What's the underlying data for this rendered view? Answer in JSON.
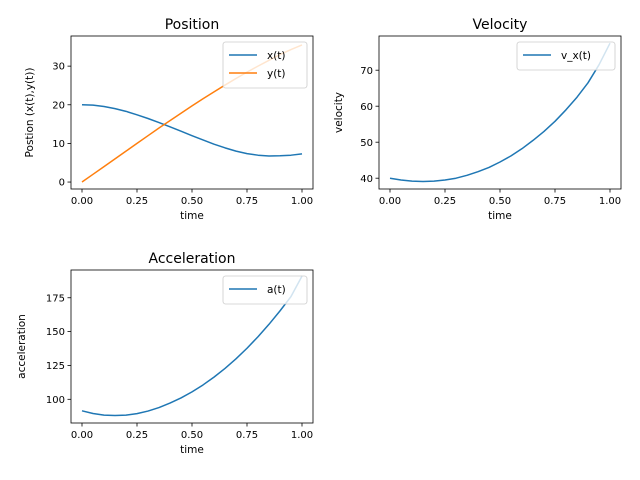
{
  "chart_data": [
    {
      "type": "line",
      "title": "Position",
      "xlabel": "time",
      "ylabel": "Postion (x(t),y(t))",
      "xlim": [
        -0.05,
        1.05
      ],
      "ylim": [
        -1.8,
        37.8
      ],
      "xticks": [
        0.0,
        0.25,
        0.5,
        0.75,
        1.0
      ],
      "xtick_labels": [
        "0.00",
        "0.25",
        "0.50",
        "0.75",
        "1.00"
      ],
      "yticks": [
        0,
        10,
        20,
        30
      ],
      "ytick_labels": [
        "0",
        "10",
        "20",
        "30"
      ],
      "legend_placement": "top-right",
      "grid": false,
      "series": [
        {
          "name": "x(t)",
          "color": "#1f77b4",
          "x": [
            0,
            0.05,
            0.1,
            0.15,
            0.2,
            0.25,
            0.3,
            0.35,
            0.4,
            0.45,
            0.5,
            0.55,
            0.6,
            0.65,
            0.7,
            0.75,
            0.8,
            0.85,
            0.9,
            0.95,
            1.0
          ],
          "y": [
            20.0,
            19.9,
            19.55,
            19.0,
            18.3,
            17.4,
            16.45,
            15.4,
            14.3,
            13.15,
            12.0,
            10.9,
            9.8,
            8.85,
            8.0,
            7.35,
            6.95,
            6.75,
            6.8,
            6.95,
            7.3
          ]
        },
        {
          "name": "y(t)",
          "color": "#ff7f0e",
          "x": [
            0,
            0.05,
            0.1,
            0.15,
            0.2,
            0.25,
            0.3,
            0.35,
            0.4,
            0.45,
            0.5,
            0.55,
            0.6,
            0.65,
            0.7,
            0.75,
            0.8,
            0.85,
            0.9,
            0.95,
            1.0
          ],
          "y": [
            0,
            2.0,
            4.0,
            6.0,
            8.0,
            10.0,
            12.0,
            14.0,
            15.9,
            17.8,
            19.7,
            21.55,
            23.35,
            25.1,
            26.8,
            28.45,
            30.0,
            31.5,
            33.0,
            34.3,
            35.5
          ]
        }
      ]
    },
    {
      "type": "line",
      "title": "Velocity",
      "xlabel": "time",
      "ylabel": "velocity",
      "xlim": [
        -0.05,
        1.05
      ],
      "ylim": [
        37.0,
        79.5
      ],
      "xticks": [
        0.0,
        0.25,
        0.5,
        0.75,
        1.0
      ],
      "xtick_labels": [
        "0.00",
        "0.25",
        "0.50",
        "0.75",
        "1.00"
      ],
      "yticks": [
        40,
        50,
        60,
        70
      ],
      "ytick_labels": [
        "40",
        "50",
        "60",
        "70"
      ],
      "legend_placement": "top-right",
      "grid": false,
      "series": [
        {
          "name": "v_x(t)",
          "color": "#1f77b4",
          "x": [
            0,
            0.05,
            0.1,
            0.15,
            0.2,
            0.25,
            0.3,
            0.35,
            0.4,
            0.45,
            0.5,
            0.55,
            0.6,
            0.65,
            0.7,
            0.75,
            0.8,
            0.85,
            0.9,
            0.95,
            1.0
          ],
          "y": [
            40.0,
            39.5,
            39.2,
            39.1,
            39.2,
            39.5,
            40.0,
            40.8,
            41.8,
            43.0,
            44.5,
            46.2,
            48.2,
            50.5,
            53.0,
            55.8,
            59.0,
            62.5,
            66.5,
            71.5,
            77.5
          ]
        }
      ]
    },
    {
      "type": "line",
      "title": "Acceleration",
      "xlabel": "time",
      "ylabel": "acceleration",
      "xlim": [
        -0.05,
        1.05
      ],
      "ylim": [
        82.5,
        195.5
      ],
      "xticks": [
        0.0,
        0.25,
        0.5,
        0.75,
        1.0
      ],
      "xtick_labels": [
        "0.00",
        "0.25",
        "0.50",
        "0.75",
        "1.00"
      ],
      "yticks": [
        100,
        125,
        150,
        175
      ],
      "ytick_labels": [
        "100",
        "125",
        "150",
        "175"
      ],
      "legend_placement": "top-right",
      "grid": false,
      "series": [
        {
          "name": "a(t)",
          "color": "#1f77b4",
          "x": [
            0,
            0.05,
            0.1,
            0.15,
            0.2,
            0.25,
            0.3,
            0.35,
            0.4,
            0.45,
            0.5,
            0.55,
            0.6,
            0.65,
            0.7,
            0.75,
            0.8,
            0.85,
            0.9,
            0.95,
            1.0
          ],
          "y": [
            91.5,
            89.5,
            88.3,
            88.0,
            88.3,
            89.4,
            91.3,
            93.9,
            97.2,
            101.0,
            105.5,
            110.6,
            116.4,
            122.8,
            129.9,
            137.7,
            146.2,
            155.4,
            165.3,
            175.9,
            191.0
          ]
        }
      ]
    }
  ]
}
